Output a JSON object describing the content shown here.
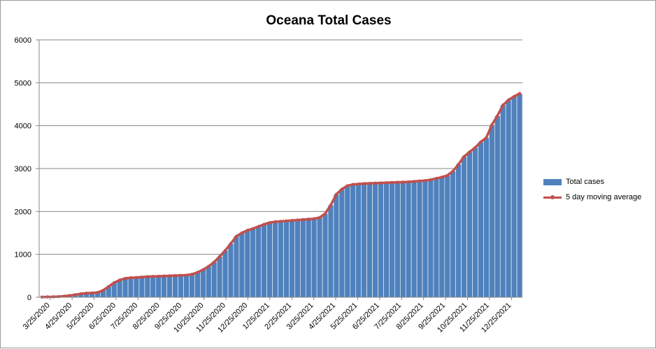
{
  "chart_data": {
    "type": "bar",
    "title": "Oceana Total Cases",
    "xlabel": "",
    "ylabel": "",
    "ylim": [
      0,
      6000
    ],
    "yticks": [
      0,
      1000,
      2000,
      3000,
      4000,
      5000,
      6000
    ],
    "grid": true,
    "legend_position": "right",
    "x_tick_labels": [
      "3/25/2020",
      "4/25/2020",
      "5/25/2020",
      "6/25/2020",
      "7/25/2020",
      "8/25/2020",
      "9/25/2020",
      "10/25/2020",
      "11/25/2020",
      "12/25/2020",
      "1/25/2021",
      "2/25/2021",
      "3/25/2021",
      "4/25/2021",
      "5/25/2021",
      "6/25/2021",
      "7/25/2021",
      "8/25/2021",
      "9/25/2021",
      "10/25/2021",
      "11/25/2021",
      "12/25/2021"
    ],
    "series": [
      {
        "name": "Total cases",
        "kind": "bar",
        "color": "#4F81BD",
        "values": [
          5,
          8,
          10,
          15,
          25,
          40,
          60,
          80,
          95,
          100,
          110,
          160,
          250,
          340,
          400,
          440,
          455,
          460,
          470,
          480,
          485,
          490,
          495,
          500,
          505,
          510,
          515,
          535,
          580,
          640,
          720,
          820,
          950,
          1090,
          1250,
          1420,
          1500,
          1560,
          1600,
          1650,
          1700,
          1740,
          1760,
          1770,
          1780,
          1790,
          1800,
          1810,
          1820,
          1830,
          1860,
          1950,
          2150,
          2400,
          2520,
          2600,
          2630,
          2640,
          2650,
          2655,
          2660,
          2665,
          2670,
          2675,
          2680,
          2685,
          2690,
          2700,
          2710,
          2720,
          2740,
          2770,
          2800,
          2840,
          2940,
          3100,
          3280,
          3390,
          3490,
          3620,
          3720,
          4020,
          4230,
          4480,
          4600,
          4680,
          4750
        ]
      },
      {
        "name": "5 day moving average",
        "kind": "line",
        "color": "#C0504D",
        "values": [
          5,
          8,
          10,
          15,
          25,
          40,
          60,
          80,
          95,
          100,
          110,
          160,
          250,
          340,
          400,
          440,
          455,
          460,
          470,
          480,
          485,
          490,
          495,
          500,
          505,
          510,
          515,
          535,
          580,
          640,
          720,
          820,
          950,
          1090,
          1250,
          1420,
          1500,
          1560,
          1600,
          1650,
          1700,
          1740,
          1760,
          1770,
          1780,
          1790,
          1800,
          1810,
          1820,
          1830,
          1860,
          1950,
          2150,
          2400,
          2520,
          2600,
          2630,
          2640,
          2650,
          2655,
          2660,
          2665,
          2670,
          2675,
          2680,
          2685,
          2690,
          2700,
          2710,
          2720,
          2740,
          2770,
          2800,
          2840,
          2940,
          3100,
          3280,
          3390,
          3490,
          3620,
          3720,
          4020,
          4230,
          4480,
          4600,
          4680,
          4750
        ]
      }
    ]
  }
}
